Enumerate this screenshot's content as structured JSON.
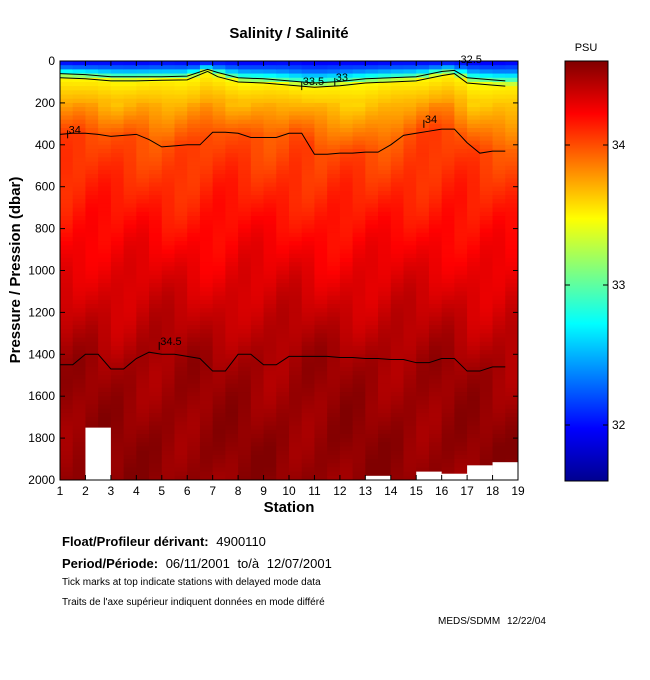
{
  "chart_data": {
    "type": "heatmap",
    "title": "Salinity / Salinité",
    "xlabel": "Station",
    "ylabel": "Pressure / Pression (dbar)",
    "xlim": [
      1,
      19
    ],
    "ylim": [
      0,
      2000
    ],
    "y_inverted": true,
    "xticks": [
      1,
      2,
      3,
      4,
      5,
      6,
      7,
      8,
      9,
      10,
      11,
      12,
      13,
      14,
      15,
      16,
      17,
      18,
      19
    ],
    "yticks": [
      0,
      200,
      400,
      600,
      800,
      1000,
      1200,
      1400,
      1600,
      1800,
      2000
    ],
    "colorbar": {
      "unit_label": "PSU",
      "min": 31.6,
      "max": 34.6,
      "ticks": [
        32,
        33,
        34
      ],
      "colormap": "jet"
    },
    "contour_labels": [
      {
        "text": "34",
        "station": 1.3,
        "pressure": 350
      },
      {
        "text": "33.5",
        "station": 10.5,
        "pressure": 120
      },
      {
        "text": "33",
        "station": 11.8,
        "pressure": 100
      },
      {
        "text": "32.5",
        "station": 16.7,
        "pressure": 15
      },
      {
        "text": "34",
        "station": 15.3,
        "pressure": 300
      },
      {
        "text": "34.5",
        "station": 4.9,
        "pressure": 1360
      }
    ],
    "contour_34_0": {
      "stations": [
        1,
        1.5,
        2,
        2.5,
        3,
        3.5,
        4,
        4.5,
        5,
        5.5,
        6,
        6.5,
        7,
        7.5,
        8,
        8.5,
        9,
        9.5,
        10,
        10.5,
        11,
        11.5,
        12,
        12.5,
        13,
        13.5,
        14,
        14.5,
        15,
        15.5,
        16,
        16.5,
        17,
        17.5,
        18,
        18.5
      ],
      "pressure": [
        350,
        345,
        345,
        350,
        360,
        355,
        350,
        375,
        410,
        405,
        400,
        400,
        340,
        340,
        345,
        365,
        365,
        365,
        345,
        345,
        445,
        445,
        440,
        440,
        435,
        435,
        400,
        355,
        345,
        335,
        325,
        325,
        390,
        440,
        430,
        430
      ]
    },
    "contour_34_5": {
      "stations": [
        1,
        1.5,
        2,
        2.5,
        3,
        3.5,
        4,
        4.5,
        5,
        5.5,
        6,
        6.5,
        7,
        7.5,
        8,
        8.5,
        9,
        9.5,
        10,
        10.5,
        11,
        11.5,
        12,
        12.5,
        13,
        13.5,
        14,
        14.5,
        15,
        15.5,
        16,
        16.5,
        17,
        17.5,
        18,
        18.5
      ],
      "pressure": [
        1450,
        1450,
        1400,
        1400,
        1470,
        1470,
        1420,
        1390,
        1400,
        1400,
        1410,
        1420,
        1480,
        1480,
        1400,
        1400,
        1450,
        1450,
        1410,
        1410,
        1410,
        1410,
        1415,
        1415,
        1420,
        1420,
        1425,
        1425,
        1440,
        1440,
        1420,
        1420,
        1480,
        1480,
        1460,
        1460
      ]
    },
    "contour_33_0": {
      "stations": [
        1,
        2,
        3,
        4,
        5,
        6,
        6.8,
        7.2,
        8,
        9,
        10,
        11,
        12,
        13,
        14,
        15,
        16,
        16.5,
        17,
        18,
        18.5
      ],
      "pressure": [
        60,
        65,
        75,
        75,
        75,
        72,
        40,
        55,
        80,
        85,
        95,
        105,
        98,
        85,
        80,
        75,
        50,
        45,
        80,
        90,
        95
      ]
    },
    "contour_33_5": {
      "stations": [
        1,
        2,
        3,
        4,
        5,
        6,
        6.8,
        7.2,
        8,
        9,
        10,
        11,
        12,
        13,
        14,
        15,
        16,
        16.5,
        17,
        18,
        18.5
      ],
      "pressure": [
        80,
        85,
        95,
        95,
        92,
        90,
        50,
        75,
        100,
        105,
        115,
        125,
        118,
        105,
        100,
        95,
        70,
        60,
        105,
        115,
        120
      ]
    },
    "missing_data_regions": [
      {
        "station_range": [
          2,
          3
        ],
        "pressure_range": [
          1750,
          2000
        ]
      },
      {
        "station_range": [
          13,
          14
        ],
        "pressure_range": [
          1980,
          2000
        ]
      },
      {
        "station_range": [
          15,
          16
        ],
        "pressure_range": [
          1960,
          2000
        ]
      },
      {
        "station_range": [
          16,
          17
        ],
        "pressure_range": [
          1970,
          2000
        ]
      },
      {
        "station_range": [
          17,
          18
        ],
        "pressure_range": [
          1930,
          2000
        ]
      },
      {
        "station_range": [
          18,
          19
        ],
        "pressure_range": [
          1915,
          2000
        ]
      }
    ]
  },
  "info": {
    "float_label": "Float/Profileur dérivant:",
    "float_id": "4900110",
    "period_label": "Period/Période:",
    "period_start": "06/11/2001",
    "period_to": "to/à",
    "period_end": "12/07/2001",
    "note_en": "Tick marks at top indicate stations with delayed mode data",
    "note_fr": "Traits de l'axe supérieur indiquent données en mode différé",
    "credit": "MEDS/SDMM 12/22/04"
  }
}
